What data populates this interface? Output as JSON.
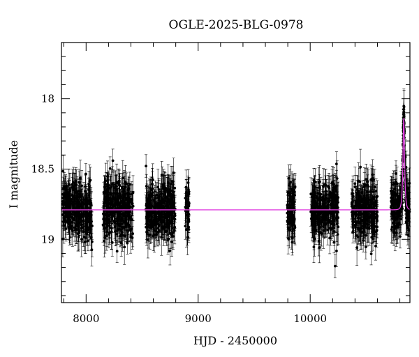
{
  "chart_data": {
    "type": "scatter",
    "title": "OGLE-2025-BLG-0978",
    "xlabel": "HJD - 2450000",
    "ylabel": "I magnitude",
    "xlim": [
      7780,
      10890
    ],
    "ylim": [
      19.45,
      17.6
    ],
    "y_inverted": true,
    "xticks": [
      8000,
      9000,
      10000
    ],
    "yticks": [
      18,
      18.5,
      19
    ],
    "grid": false,
    "baseline_mag": 18.79,
    "seasons": [
      {
        "start": 7790,
        "end": 8055
      },
      {
        "start": 8150,
        "end": 8420
      },
      {
        "start": 8530,
        "end": 8795
      },
      {
        "start": 8885,
        "end": 8920
      },
      {
        "start": 9795,
        "end": 9870
      },
      {
        "start": 10005,
        "end": 10250
      },
      {
        "start": 10370,
        "end": 10600
      },
      {
        "start": 10720,
        "end": 10890
      }
    ],
    "scatter_sigma_mag": 0.12,
    "errorbar_mag": 0.1,
    "series": [
      {
        "role": "photometry",
        "color": "#000000"
      },
      {
        "role": "model",
        "color": "#e040e0",
        "peak_time": 10835,
        "peak_mag": 18.12,
        "tE_days": 11
      }
    ]
  }
}
